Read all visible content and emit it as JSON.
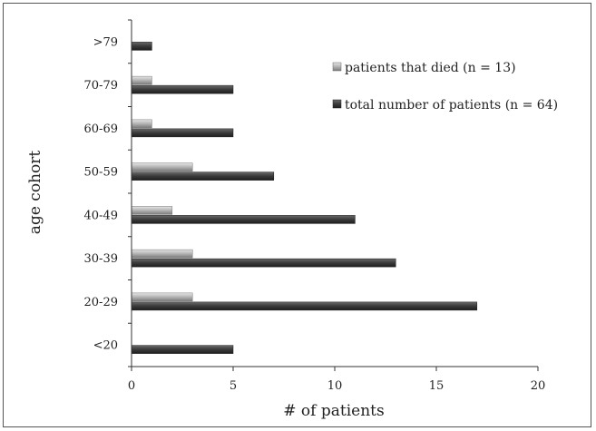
{
  "chart_data": {
    "type": "bar",
    "orientation": "horizontal",
    "title": "",
    "xlabel": "# of patients",
    "ylabel": "age cohort",
    "xlim": [
      0,
      20
    ],
    "xticks": [
      "0",
      "5",
      "10",
      "15",
      "20"
    ],
    "grid": false,
    "legend_position": "top-right",
    "categories": [
      "<20",
      "20-29",
      "30-39",
      "40-49",
      "50-59",
      "60-69",
      "70-79",
      ">79"
    ],
    "series": [
      {
        "name": "patients that died (n = 13)",
        "values": [
          0,
          3,
          3,
          2,
          3,
          1,
          1,
          0
        ],
        "color": "#a6a6a6"
      },
      {
        "name": "total number of patients (n = 64)",
        "values": [
          5,
          17,
          13,
          11,
          7,
          5,
          5,
          1
        ],
        "color": "#3c3c3c"
      }
    ]
  }
}
